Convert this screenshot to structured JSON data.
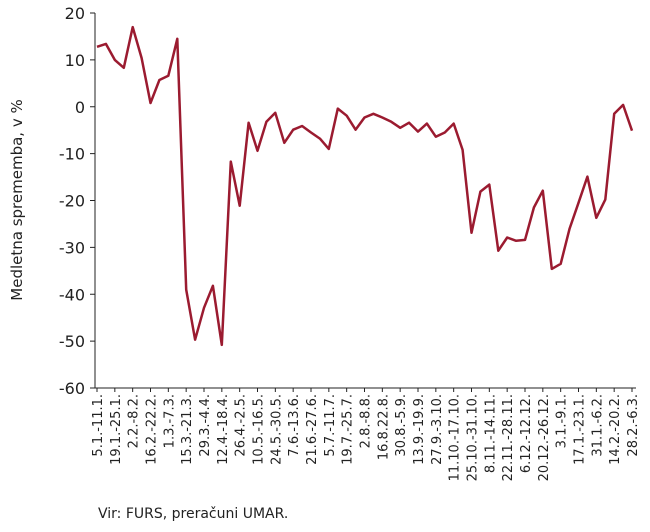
{
  "chart_data": {
    "type": "line",
    "y_label": "Medletna sprememba, v %",
    "source": "Vir: FURS, preračuni UMAR.",
    "categories": [
      "5.1.-11.1.",
      null,
      "19.1.-25.1.",
      null,
      "2.2.-8.2.",
      null,
      "16.2.-22.2.",
      null,
      "1.3.-7.3.",
      null,
      "15.3.-21.3.",
      null,
      "29.3.-4.4.",
      null,
      "12.4.-18.4.",
      null,
      "26.4.-2.5.",
      null,
      "10.5.-16.5.",
      null,
      "24.5.-30.5.",
      null,
      "7.6.-13.6.",
      null,
      "21.6.-27.6.",
      null,
      "5.7.-11.7.",
      null,
      "19.7.-25.7.",
      null,
      "2.8.-8.8.",
      null,
      "16.8.22.8.",
      null,
      "30.8.-5.9.",
      null,
      "13.9.-19.9.",
      null,
      "27.9.-3.10.",
      null,
      "11.10.-17.10.",
      null,
      "25.10.-31.10.",
      null,
      "8.11.-14.11.",
      null,
      "22.11.-28.11.",
      null,
      "6.12.-12.12.",
      null,
      "20.12.-26.12.",
      null,
      "3.1.-9.1.",
      null,
      "17.1.-23.1.",
      null,
      "31.1.-6.2.",
      null,
      "14.2.-20.2.",
      null,
      "28.2.-6.3."
    ],
    "series": [
      {
        "color": "#9b1b30",
        "values": [
          12.8,
          13.4,
          10,
          8.3,
          17,
          10.4,
          0.8,
          5.7,
          6.6,
          14.5,
          -39,
          -49.7,
          -42.9,
          -38.2,
          -50.8,
          -11.7,
          -21.1,
          -3.4,
          -9.4,
          -3.2,
          -1.3,
          -7.7,
          -4.9,
          -4.1,
          -5.5,
          -6.8,
          -9.0,
          -0.4,
          -1.9,
          -4.9,
          -2.3,
          -1.5,
          -2.3,
          -3.2,
          -4.5,
          -3.4,
          -5.3,
          -3.6,
          -6.4,
          -5.5,
          -3.6,
          -9.2,
          -26.9,
          -18.1,
          -16.6,
          -30.7,
          -27.9,
          -28.6,
          -28.4,
          -21.5,
          -17.9,
          -34.6,
          -33.5,
          -26,
          -20.5,
          -14.9,
          -23.7,
          -19.8,
          -1.5,
          0.4,
          -5.1
        ]
      }
    ],
    "ylim": [
      -60,
      20
    ],
    "yticks": [
      -60,
      -50,
      -40,
      -30,
      -20,
      -10,
      0,
      10,
      20
    ],
    "grid": false
  }
}
